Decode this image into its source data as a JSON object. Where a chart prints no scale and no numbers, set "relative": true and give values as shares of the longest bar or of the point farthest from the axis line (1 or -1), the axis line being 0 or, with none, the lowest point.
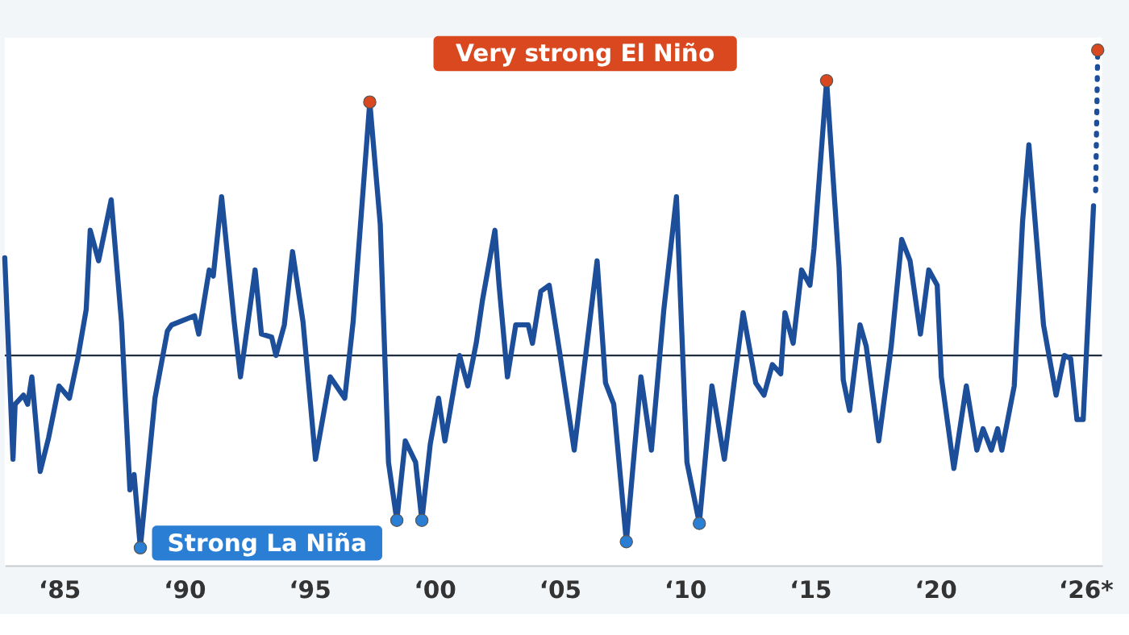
{
  "chart_data": {
    "type": "line",
    "relative": true,
    "xlim": [
      "1982-11",
      "2026-09"
    ],
    "xticks": [
      {
        "value": "1985-01",
        "label": "‘85"
      },
      {
        "value": "1990-01",
        "label": "‘90"
      },
      {
        "value": "1995-01",
        "label": "‘95"
      },
      {
        "value": "2000-01",
        "label": "‘00"
      },
      {
        "value": "2005-01",
        "label": "‘05"
      },
      {
        "value": "2010-01",
        "label": "‘10"
      },
      {
        "value": "2015-01",
        "label": "‘15"
      },
      {
        "value": "2020-01",
        "label": "‘20"
      },
      {
        "value": "2026-01",
        "label": "‘26*"
      }
    ],
    "series": [
      {
        "color": "#1d4e9a",
        "line_style": "solid",
        "x": [
          "1982-11",
          "1983-03",
          "1983-04",
          "1983-08",
          "1983-10",
          "1983-12",
          "1984-04",
          "1984-08",
          "1985-01",
          "1985-06",
          "1985-10",
          "1986-02",
          "1986-04",
          "1986-08",
          "1987-02",
          "1987-07",
          "1987-11",
          "1988-01",
          "1988-04",
          "1988-11",
          "1989-05",
          "1989-07",
          "1990-06",
          "1990-08",
          "1991-01",
          "1991-03",
          "1991-07",
          "1992-01",
          "1992-04",
          "1992-11",
          "1993-02",
          "1993-07",
          "1993-09",
          "1994-01",
          "1994-05",
          "1994-10",
          "1995-04",
          "1995-11",
          "1996-06",
          "1996-10",
          "1997-06",
          "1997-11",
          "1998-03",
          "1998-07",
          "1998-11",
          "1999-04",
          "1999-07",
          "1999-11",
          "2000-03",
          "2000-06",
          "2001-01",
          "2001-05",
          "2001-09",
          "2001-12",
          "2002-06",
          "2002-08",
          "2002-12",
          "2003-04",
          "2003-10",
          "2003-12",
          "2004-04",
          "2004-08",
          "2005-01",
          "2005-08",
          "2006-07",
          "2006-11",
          "2007-03",
          "2007-09",
          "2008-04",
          "2008-09",
          "2009-03",
          "2009-09",
          "2010-02",
          "2010-08",
          "2011-02",
          "2011-08",
          "2012-01",
          "2012-05",
          "2012-11",
          "2013-03",
          "2013-07",
          "2013-11",
          "2014-01",
          "2014-05",
          "2014-09",
          "2015-01",
          "2015-03",
          "2015-09",
          "2016-03",
          "2016-05",
          "2016-08",
          "2017-01",
          "2017-04",
          "2017-10",
          "2018-04",
          "2018-09",
          "2019-01",
          "2019-06",
          "2019-10",
          "2020-02",
          "2020-04",
          "2020-10",
          "2021-04",
          "2021-09",
          "2021-12",
          "2022-04",
          "2022-07",
          "2022-09",
          "2023-03",
          "2023-07",
          "2023-10",
          "2024-05",
          "2024-11",
          "2025-03",
          "2025-06",
          "2025-09",
          "2025-12",
          "2026-05"
        ],
        "values": [
          0.32,
          -0.34,
          -0.16,
          -0.13,
          -0.16,
          -0.07,
          -0.38,
          -0.27,
          -0.1,
          -0.14,
          -0.01,
          0.15,
          0.41,
          0.31,
          0.51,
          0.11,
          -0.44,
          -0.39,
          -0.63,
          -0.14,
          0.08,
          0.1,
          0.13,
          0.07,
          0.28,
          0.26,
          0.52,
          0.11,
          -0.07,
          0.28,
          0.07,
          0.06,
          0.0,
          0.1,
          0.34,
          0.11,
          -0.34,
          -0.07,
          -0.14,
          0.11,
          0.83,
          0.43,
          -0.35,
          -0.54,
          -0.28,
          -0.35,
          -0.54,
          -0.29,
          -0.14,
          -0.28,
          0.0,
          -0.1,
          0.04,
          0.18,
          0.41,
          0.23,
          -0.07,
          0.1,
          0.1,
          0.04,
          0.21,
          0.23,
          0.01,
          -0.31,
          0.31,
          -0.09,
          -0.16,
          -0.61,
          -0.07,
          -0.31,
          0.15,
          0.52,
          -0.35,
          -0.55,
          -0.1,
          -0.34,
          -0.07,
          0.14,
          -0.09,
          -0.13,
          -0.03,
          -0.06,
          0.14,
          0.04,
          0.28,
          0.23,
          0.35,
          0.9,
          0.29,
          -0.08,
          -0.18,
          0.1,
          0.03,
          -0.28,
          0.03,
          0.38,
          0.31,
          0.07,
          0.28,
          0.23,
          -0.07,
          -0.37,
          -0.1,
          -0.31,
          -0.24,
          -0.31,
          -0.24,
          -0.31,
          -0.1,
          0.44,
          0.69,
          0.1,
          -0.13,
          0.0,
          -0.01,
          -0.21,
          -0.21,
          0.49
        ]
      },
      {
        "type": "line",
        "color": "#1d4e9a",
        "line_style": "dotted",
        "x": [
          "2026-06",
          "2026-07"
        ],
        "values": [
          0.54,
          1.0
        ]
      },
      {
        "type": "scatter",
        "color": "#d9481e",
        "marker": "circle",
        "x": [
          "1997-06",
          "2015-09",
          "2026-07"
        ],
        "values": [
          0.83,
          0.9,
          1.0
        ]
      },
      {
        "type": "scatter",
        "color": "#2a7fd4",
        "marker": "circle",
        "x": [
          "1988-04",
          "1998-07",
          "1999-07",
          "2007-09",
          "2010-08"
        ],
        "values": [
          -0.63,
          -0.54,
          -0.54,
          -0.61,
          -0.55
        ]
      }
    ],
    "ref_lines": [
      {
        "axis": "y",
        "value": 0,
        "color": "#1f2d3d"
      }
    ],
    "annotations": [
      "Very strong El Niño",
      "Strong La Niña"
    ]
  }
}
